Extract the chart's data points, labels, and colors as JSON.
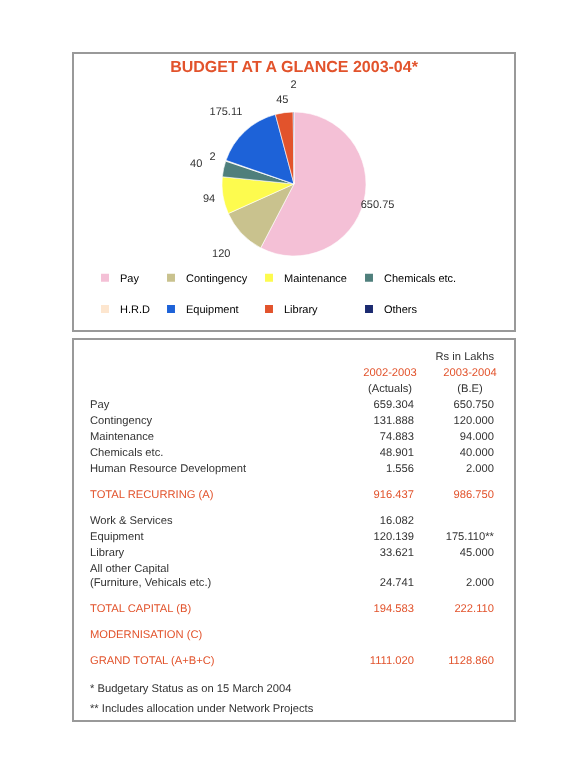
{
  "chart_data": [
    {
      "type": "pie",
      "title": "BUDGET AT A GLANCE 2003-04*",
      "categories": [
        "Pay",
        "Contingency",
        "Maintenance",
        "Chemicals etc.",
        "H.R.D",
        "Equipment",
        "Library",
        "Others"
      ],
      "values": [
        650.75,
        120,
        94,
        40,
        2,
        175.11,
        45,
        2
      ],
      "colors": [
        "#f4c0d6",
        "#c9c28e",
        "#fdfb4e",
        "#4f7f7c",
        "#fde6cf",
        "#1d62d8",
        "#e2532c",
        "#1b2a70"
      ],
      "data_labels": true,
      "legend": "bottom"
    },
    {
      "type": "other",
      "categories": [
        "Pay",
        "Contingency",
        "Maintenance",
        "Chemicals etc.",
        "Human Resource Development",
        "TOTAL RECURRING (A)",
        "Work & Services",
        "Equipment",
        "Library",
        "All other Capital\n(Furniture, Vehicals etc.)",
        "TOTAL CAPITAL (B)",
        "MODERNISATION (C)",
        "GRAND TOTAL (A+B+C)"
      ],
      "series": [
        {
          "name": "2002-2003 (Actuals)",
          "values": [
            659.304,
            131.888,
            74.883,
            48.901,
            1.556,
            916.437,
            16.082,
            120.139,
            33.621,
            24.741,
            194.583,
            null,
            1111.02
          ],
          "value_labels": [
            "659.304",
            "131.888",
            "74.883",
            "48.901",
            "1.556",
            "916.437",
            "16.082",
            "120.139",
            "33.621",
            "24.741",
            "194.583",
            null,
            "1111.020"
          ]
        },
        {
          "name": "2003-2004 (B.E)",
          "values": [
            650.75,
            120,
            94,
            40,
            2,
            986.75,
            null,
            175.11,
            45,
            2,
            222.11,
            null,
            1128.86
          ],
          "value_labels": [
            "650.750",
            "120.000",
            "94.000",
            "40.000",
            "2.000",
            "986.750",
            null,
            "175.110**",
            "45.000",
            "2.000",
            "222.110",
            null,
            "1128.860"
          ]
        }
      ],
      "annotations": [
        "Rs in Lakhs",
        "*    Budgetary Status as on 15 March 2004",
        "**   Includes allocation under Network Projects"
      ]
    }
  ]
}
